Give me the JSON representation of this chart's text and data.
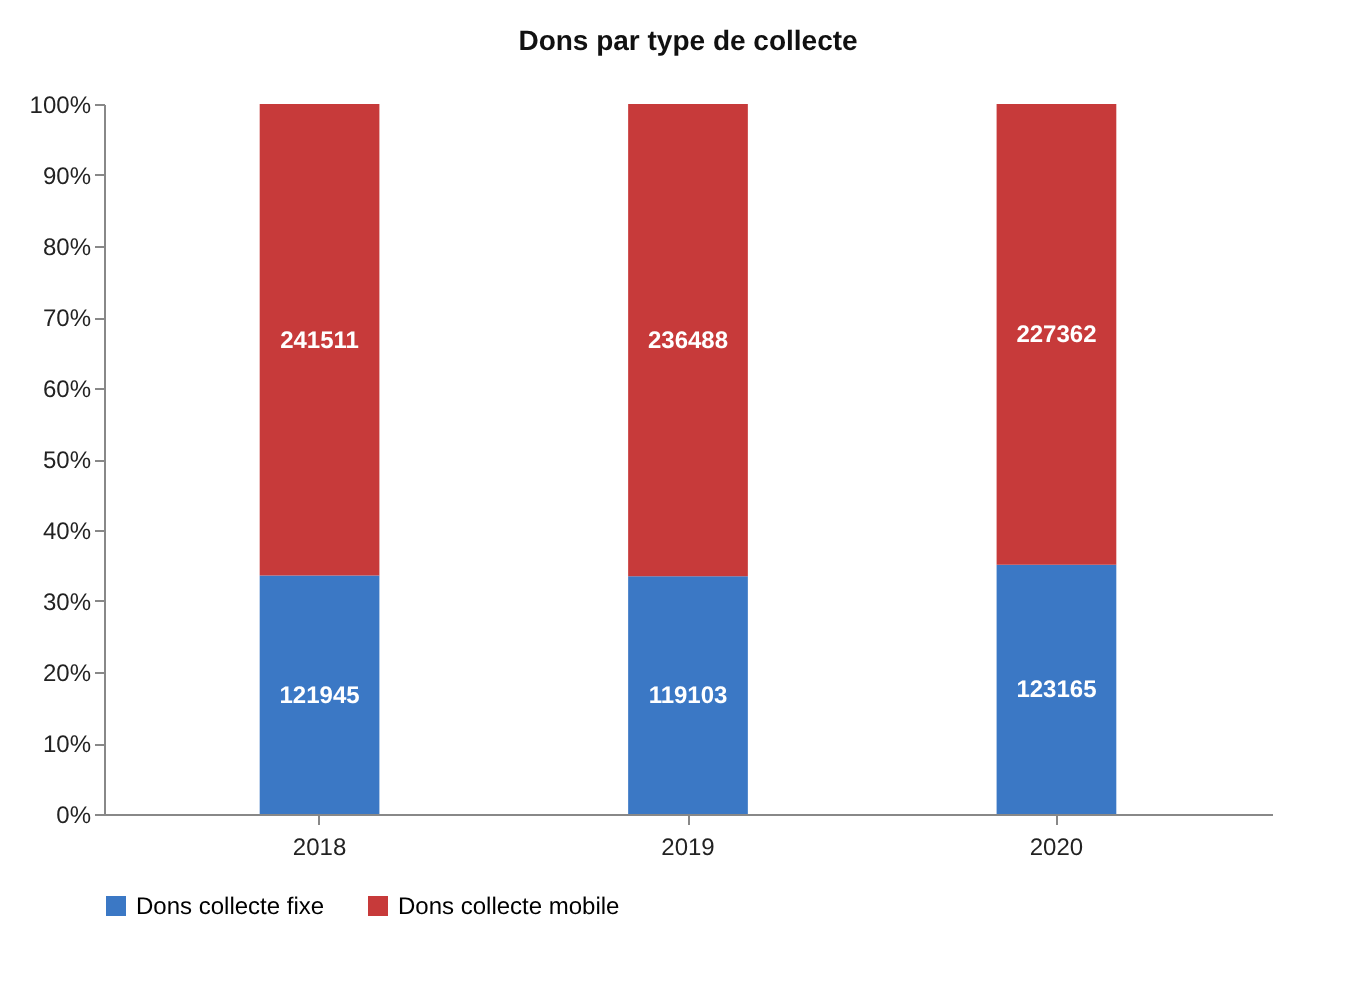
{
  "chart_data": {
    "type": "bar",
    "title": "Dons par type de collecte",
    "categories": [
      "2018",
      "2019",
      "2020"
    ],
    "stacked": true,
    "series": [
      {
        "name": "Dons collecte fixe",
        "color": "#3b78c5",
        "values": [
          33.6,
          33.5,
          35.1
        ]
      },
      {
        "name": "Dons collecte mobile",
        "color": "#c73a3a",
        "values": [
          66.4,
          66.5,
          64.9
        ]
      }
    ],
    "annotations": [
      "121945",
      "119103",
      "123165",
      "241511",
      "236488",
      "227362"
    ],
    "ylim": [
      0,
      100
    ],
    "yticks": [
      {
        "value": 0,
        "label": "0%"
      },
      {
        "value": 10,
        "label": "10%"
      },
      {
        "value": 20,
        "label": "20%"
      },
      {
        "value": 30,
        "label": "30%"
      },
      {
        "value": 40,
        "label": "40%"
      },
      {
        "value": 50,
        "label": "50%"
      },
      {
        "value": 60,
        "label": "60%"
      },
      {
        "value": 70,
        "label": "70%"
      },
      {
        "value": 80,
        "label": "80%"
      },
      {
        "value": 90,
        "label": "90%"
      },
      {
        "value": 100,
        "label": "100%"
      }
    ],
    "grid": false,
    "legend": "bottom"
  }
}
